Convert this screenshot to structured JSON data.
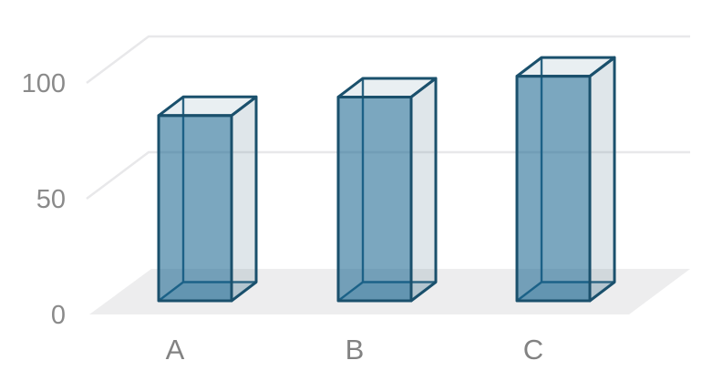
{
  "chart_data": {
    "type": "bar",
    "style": "3d-column",
    "title": "",
    "xlabel": "",
    "ylabel": "",
    "categories": [
      "A",
      "B",
      "C"
    ],
    "values": [
      80,
      88,
      97
    ],
    "yticks": [
      {
        "value": 0,
        "label": "0"
      },
      {
        "value": 50,
        "label": "50"
      },
      {
        "value": 100,
        "label": "100"
      }
    ],
    "ylim": [
      0,
      107
    ],
    "grid": true,
    "legend": false,
    "colors": {
      "bar_front": "rgba(28,104,144,0.58)",
      "bar_side": "rgba(110,140,160,0.22)",
      "bar_top": "rgba(120,155,175,0.16)",
      "bar_bottom": "rgba(28,104,144,0.18)",
      "bar_edge": "#1a506c",
      "bar_hidden_edge": "#1d5a7a",
      "floor": "#ededee",
      "gridline": "#e8e8ea",
      "tick_label": "#8a8a8a",
      "category_label": "#828282",
      "background": "#ffffff"
    }
  }
}
